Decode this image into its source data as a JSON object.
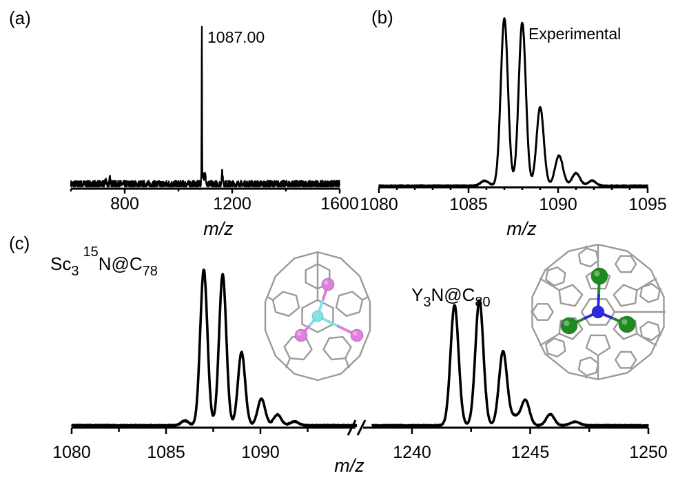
{
  "figure": {
    "panels": [
      {
        "letter": "(a)"
      },
      {
        "letter": "(b)"
      },
      {
        "letter": "(c)"
      }
    ]
  },
  "molecules": {
    "sc": {
      "base": "Sc",
      "sub1": "3",
      "sup": "15",
      "mid": "N@C",
      "sub2": "78",
      "atom_colors": {
        "metal": "#e07ee0",
        "nitrogen": "#7fe3e8"
      }
    },
    "y": {
      "base": "Y",
      "sub1": "3",
      "mid": "N@C",
      "sub2": "80",
      "atom_colors": {
        "metal": "#1f8a1f",
        "nitrogen": "#2a2adf"
      }
    },
    "cage_color": "#9a9a9a"
  },
  "chart_data": [
    {
      "id": "a",
      "type": "line",
      "title": "(a)",
      "xlabel": "m/z",
      "ylabel": "",
      "xlim": [
        600,
        1600
      ],
      "xticks": [
        800,
        1200,
        1600
      ],
      "tick_labels": [
        "800",
        "1200",
        "1600"
      ],
      "annotation": "1087.00",
      "peaks": [
        {
          "x": 1087.0,
          "y": 1.0,
          "w": 0.9
        },
        {
          "x": 1092,
          "y": 0.06,
          "w": 3
        },
        {
          "x": 1100,
          "y": 0.055,
          "w": 3
        },
        {
          "x": 1163,
          "y": 0.075,
          "w": 2.5
        },
        {
          "x": 730,
          "y": 0.03,
          "w": 2
        },
        {
          "x": 745,
          "y": 0.035,
          "w": 2
        }
      ],
      "noise": 0.02,
      "grid": false
    },
    {
      "id": "b",
      "type": "line",
      "title": "(b)",
      "xlabel": "m/z",
      "ylabel": "",
      "xlim": [
        1080,
        1095
      ],
      "xticks": [
        1080,
        1085,
        1090,
        1095
      ],
      "tick_labels": [
        "1080",
        "1085",
        "1090",
        "1095"
      ],
      "minor_step": 1,
      "annotation": "Experimental",
      "peaks": [
        {
          "x": 1085.9,
          "y": 0.03,
          "w": 0.22
        },
        {
          "x": 1087.0,
          "y": 1.0,
          "w": 0.2
        },
        {
          "x": 1088.0,
          "y": 0.975,
          "w": 0.2
        },
        {
          "x": 1089.0,
          "y": 0.47,
          "w": 0.2
        },
        {
          "x": 1090.05,
          "y": 0.18,
          "w": 0.22
        },
        {
          "x": 1091.0,
          "y": 0.075,
          "w": 0.22
        },
        {
          "x": 1091.9,
          "y": 0.03,
          "w": 0.22
        }
      ],
      "noise": 0.006,
      "grid": false
    },
    {
      "id": "c",
      "type": "line",
      "title": "(c)",
      "xlabel": "m/z",
      "ylabel": "",
      "broken_axis": true,
      "segments": [
        {
          "xlim": [
            1080,
            1095
          ],
          "xticks": [
            1080,
            1085,
            1090
          ],
          "tick_labels": [
            "1080",
            "1085",
            "1090"
          ],
          "minor_ticks": [
            1082.5,
            1087.5,
            1092.5
          ],
          "series_label": "Sc3 15N@C78",
          "peaks": [
            {
              "x": 1086.0,
              "y": 0.03,
              "w": 0.2
            },
            {
              "x": 1087.0,
              "y": 1.0,
              "w": 0.19
            },
            {
              "x": 1088.0,
              "y": 0.97,
              "w": 0.19
            },
            {
              "x": 1089.0,
              "y": 0.47,
              "w": 0.19
            },
            {
              "x": 1090.05,
              "y": 0.17,
              "w": 0.2
            },
            {
              "x": 1090.9,
              "y": 0.07,
              "w": 0.2
            },
            {
              "x": 1091.8,
              "y": 0.025,
              "w": 0.22
            }
          ]
        },
        {
          "xlim": [
            1238,
            1250
          ],
          "xticks": [
            1240,
            1245,
            1250
          ],
          "tick_labels": [
            "1240",
            "1245",
            "1250"
          ],
          "minor_ticks": [
            1242.5,
            1247.5
          ],
          "series_label": "Y3N@C80",
          "peaks": [
            {
              "x": 1241.8,
              "y": 0.96,
              "w": 0.17
            },
            {
              "x": 1242.85,
              "y": 1.0,
              "w": 0.17
            },
            {
              "x": 1243.85,
              "y": 0.59,
              "w": 0.17
            },
            {
              "x": 1244.8,
              "y": 0.2,
              "w": 0.17
            },
            {
              "x": 1244.35,
              "y": 0.07,
              "w": 0.2
            },
            {
              "x": 1245.85,
              "y": 0.09,
              "w": 0.17
            },
            {
              "x": 1246.9,
              "y": 0.03,
              "w": 0.2
            }
          ]
        }
      ],
      "noise": 0.006,
      "grid": false
    }
  ]
}
